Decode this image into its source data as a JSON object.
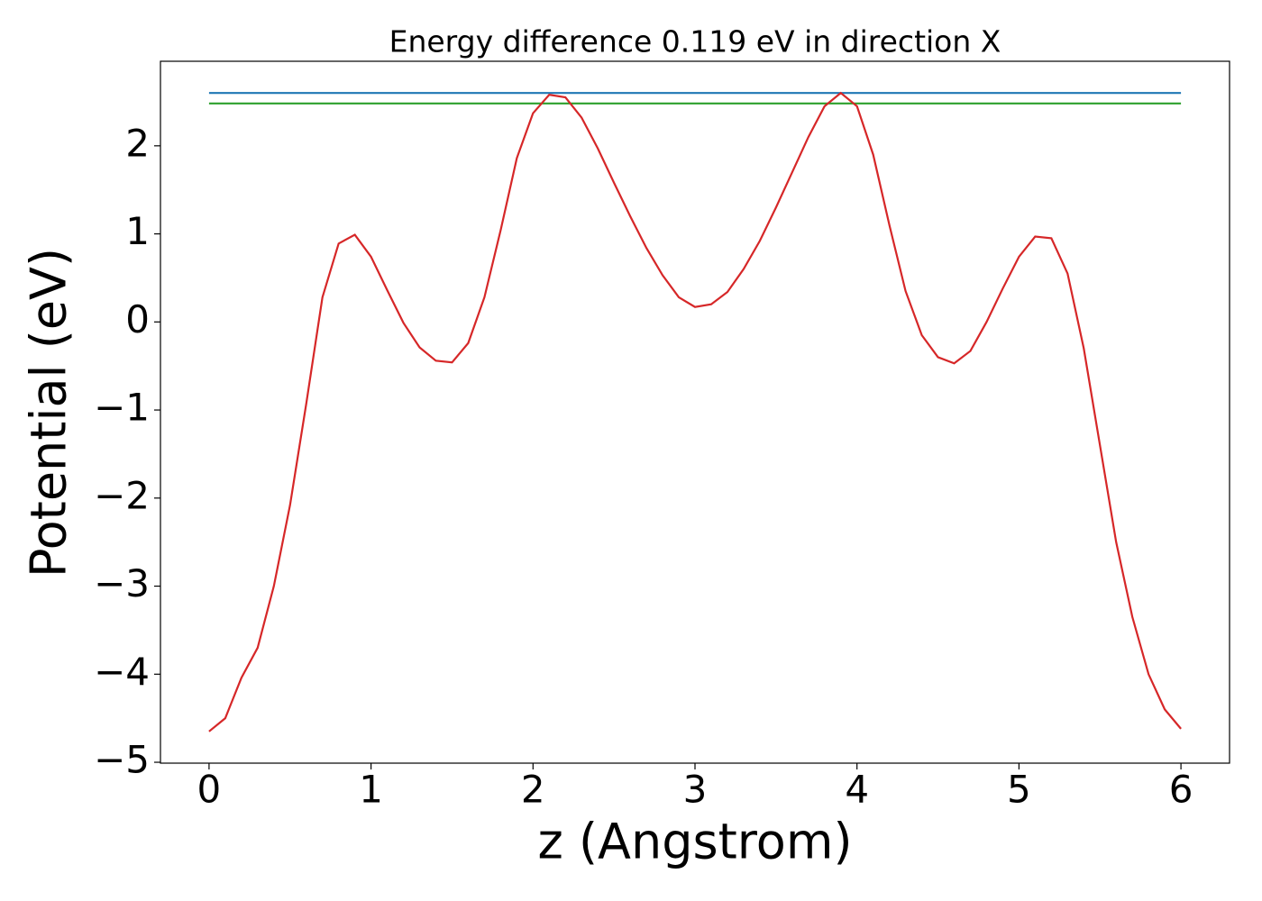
{
  "chart_data": {
    "type": "line",
    "title": "Energy difference 0.119 eV in direction X",
    "xlabel": "z (Angstrom)",
    "ylabel": "Potential (eV)",
    "xlim": [
      -0.3,
      6.3
    ],
    "ylim": [
      -5.01,
      2.96
    ],
    "xticks": [
      0,
      1,
      2,
      3,
      4,
      5,
      6
    ],
    "yticks": [
      {
        "value": -5,
        "label": "−5"
      },
      {
        "value": -4,
        "label": "−4"
      },
      {
        "value": -3,
        "label": "−3"
      },
      {
        "value": -2,
        "label": "−2"
      },
      {
        "value": -1,
        "label": "−1"
      },
      0,
      1,
      2
    ],
    "grid": false,
    "series": [
      {
        "color": "#1f77b4",
        "x": [
          0,
          6
        ],
        "values": [
          2.6,
          2.6
        ]
      },
      {
        "color": "#2ca02c",
        "x": [
          0,
          6
        ],
        "values": [
          2.481,
          2.481
        ]
      },
      {
        "color": "#d62728",
        "x": [
          0,
          0.1,
          0.2,
          0.3,
          0.4,
          0.5,
          0.6,
          0.7,
          0.8,
          0.9,
          1.0,
          1.1,
          1.2,
          1.3,
          1.4,
          1.5,
          1.6,
          1.7,
          1.8,
          1.9,
          2.0,
          2.1,
          2.2,
          2.3,
          2.4,
          2.5,
          2.6,
          2.7,
          2.8,
          2.9,
          3.0,
          3.1,
          3.2,
          3.3,
          3.4,
          3.5,
          3.6,
          3.7,
          3.8,
          3.9,
          4.0,
          4.1,
          4.2,
          4.3,
          4.4,
          4.5,
          4.6,
          4.7,
          4.8,
          4.9,
          5.0,
          5.1,
          5.2,
          5.3,
          5.4,
          5.5,
          5.6,
          5.7,
          5.8,
          5.9,
          6.0
        ],
        "values": [
          -4.65,
          -4.5,
          -4.04,
          -3.7,
          -3.0,
          -2.08,
          -0.93,
          0.28,
          0.89,
          0.99,
          0.74,
          0.36,
          -0.01,
          -0.29,
          -0.44,
          -0.46,
          -0.24,
          0.28,
          1.04,
          1.86,
          2.37,
          2.58,
          2.55,
          2.32,
          1.97,
          1.58,
          1.2,
          0.84,
          0.53,
          0.28,
          0.17,
          0.2,
          0.34,
          0.6,
          0.92,
          1.3,
          1.7,
          2.1,
          2.45,
          2.6,
          2.45,
          1.9,
          1.1,
          0.35,
          -0.15,
          -0.4,
          -0.47,
          -0.33,
          0.0,
          0.38,
          0.74,
          0.97,
          0.95,
          0.55,
          -0.3,
          -1.4,
          -2.5,
          -3.35,
          -4.0,
          -4.4,
          -4.62
        ]
      }
    ]
  }
}
